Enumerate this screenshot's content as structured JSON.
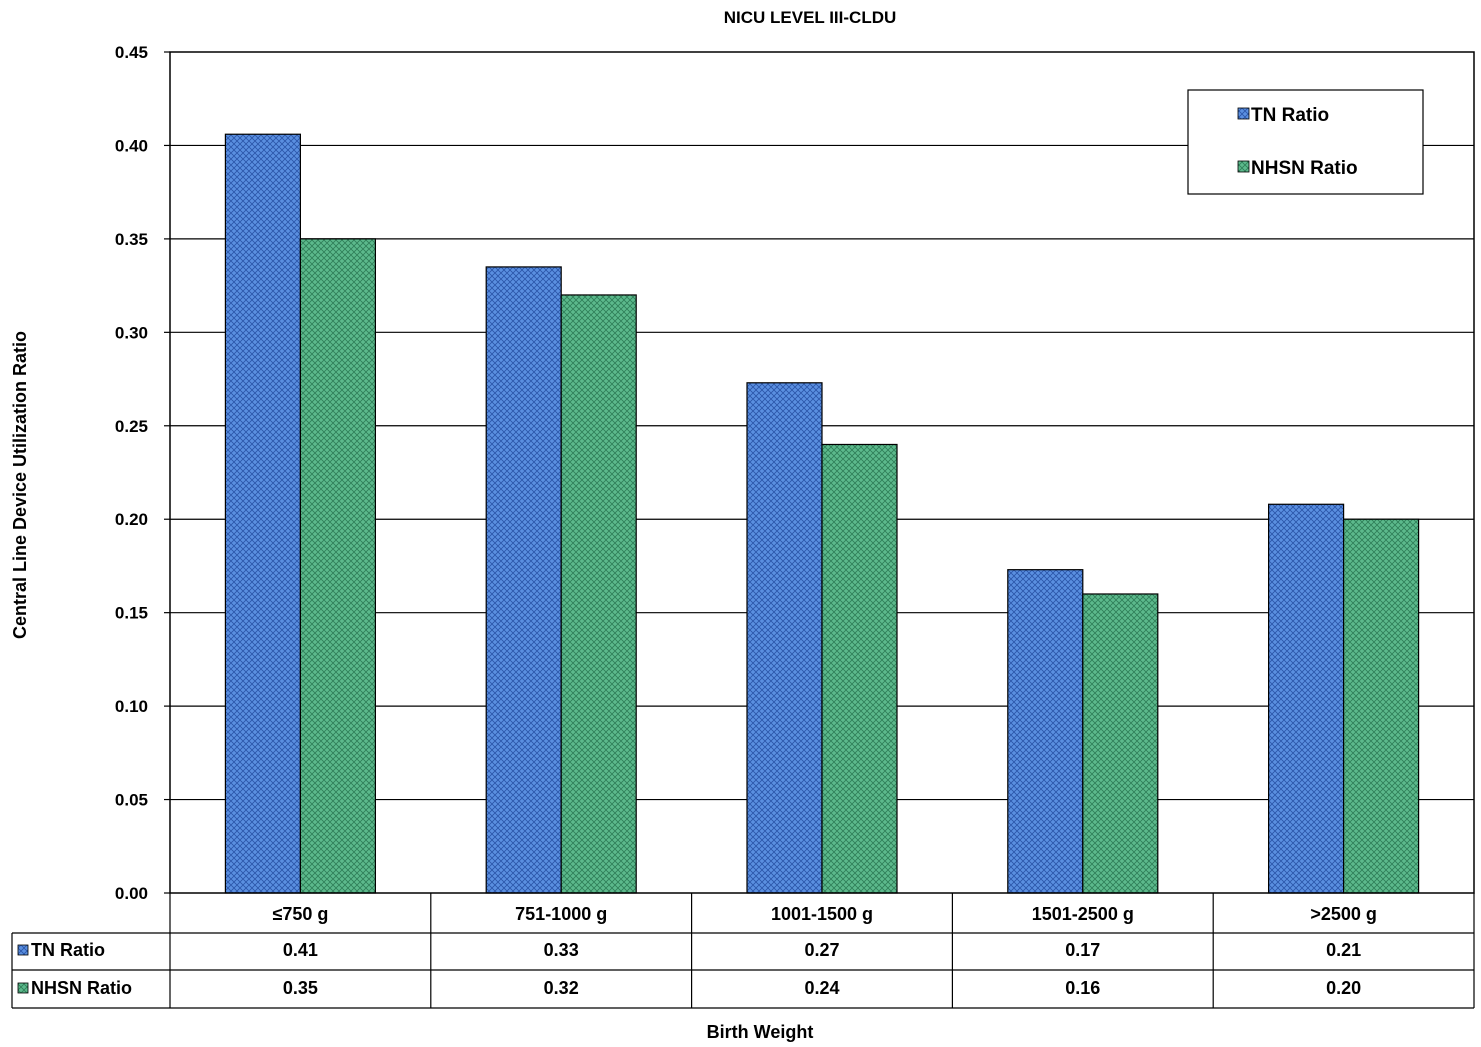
{
  "chart_data": {
    "type": "bar",
    "title": "NICU LEVEL III-CLDU",
    "xlabel": "Birth Weight",
    "ylabel": "Central Line Device Utilization Ratio",
    "categories": [
      "≤750 g",
      "751-1000 g",
      "1001-1500 g",
      "1501-2500 g",
      ">2500 g"
    ],
    "series": [
      {
        "name": "TN Ratio",
        "values": [
          0.406,
          0.335,
          0.273,
          0.173,
          0.208
        ],
        "table_values": [
          "0.41",
          "0.33",
          "0.27",
          "0.17",
          "0.21"
        ],
        "color": "#4f81d6"
      },
      {
        "name": "NHSN Ratio",
        "values": [
          0.35,
          0.32,
          0.24,
          0.16,
          0.2
        ],
        "table_values": [
          "0.35",
          "0.32",
          "0.24",
          "0.16",
          "0.20"
        ],
        "color": "#4fae82"
      }
    ],
    "ylim": [
      0,
      0.45
    ],
    "yticks": [
      "0.00",
      "0.05",
      "0.10",
      "0.15",
      "0.20",
      "0.25",
      "0.30",
      "0.35",
      "0.40",
      "0.45"
    ],
    "grid": true,
    "legend_position": "top-right",
    "data_table": true
  }
}
